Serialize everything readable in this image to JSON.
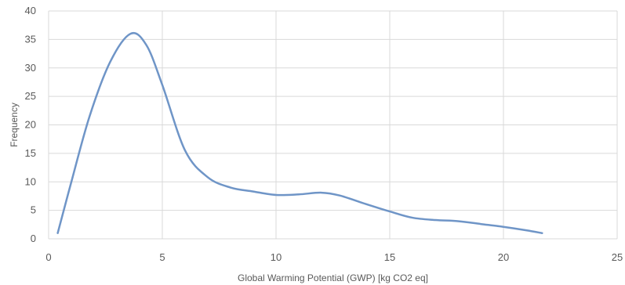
{
  "chart_data": {
    "type": "line",
    "title": "",
    "xlabel": "Global Warming Potential (GWP) [kg CO2 eq]",
    "ylabel": "Frequency",
    "xlim": [
      0,
      25
    ],
    "ylim": [
      0,
      40
    ],
    "x_ticks": [
      0,
      5,
      10,
      15,
      20,
      25
    ],
    "y_ticks": [
      0,
      5,
      10,
      15,
      20,
      25,
      30,
      35,
      40
    ],
    "grid": true,
    "legend": "none",
    "line_color": "#6f95c7",
    "grid_color": "#d9d9d9",
    "series": [
      {
        "values": [
          {
            "x": 0.4,
            "y": 1.0
          },
          {
            "x": 1.0,
            "y": 10.0
          },
          {
            "x": 1.8,
            "y": 21.5
          },
          {
            "x": 2.7,
            "y": 31.0
          },
          {
            "x": 3.6,
            "y": 36.0
          },
          {
            "x": 4.3,
            "y": 34.0
          },
          {
            "x": 5.0,
            "y": 27.0
          },
          {
            "x": 6.0,
            "y": 15.5
          },
          {
            "x": 7.0,
            "y": 10.8
          },
          {
            "x": 8.0,
            "y": 9.0
          },
          {
            "x": 9.0,
            "y": 8.3
          },
          {
            "x": 10.0,
            "y": 7.7
          },
          {
            "x": 11.0,
            "y": 7.8
          },
          {
            "x": 12.0,
            "y": 8.1
          },
          {
            "x": 12.8,
            "y": 7.6
          },
          {
            "x": 13.8,
            "y": 6.3
          },
          {
            "x": 15.0,
            "y": 4.8
          },
          {
            "x": 16.0,
            "y": 3.7
          },
          {
            "x": 17.0,
            "y": 3.3
          },
          {
            "x": 18.0,
            "y": 3.1
          },
          {
            "x": 19.0,
            "y": 2.6
          },
          {
            "x": 20.0,
            "y": 2.1
          },
          {
            "x": 21.0,
            "y": 1.5
          },
          {
            "x": 21.7,
            "y": 1.0
          }
        ]
      }
    ]
  }
}
